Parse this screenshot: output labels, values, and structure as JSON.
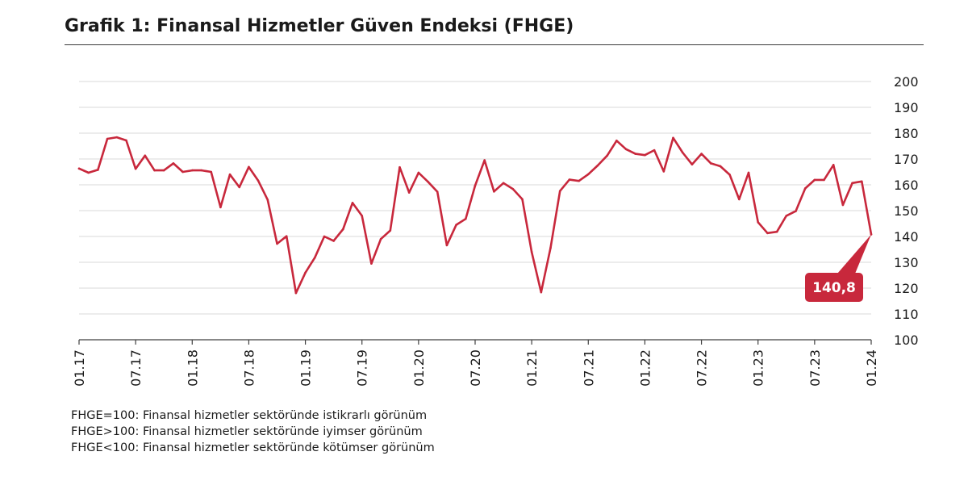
{
  "header": {
    "title": "Grafik 1: Finansal Hizmetler Güven Endeksi (FHGE)"
  },
  "notes": [
    "FHGE=100: Finansal hizmetler sektöründe istikrarlı görünüm",
    "FHGE>100: Finansal hizmetler sektöründe iyimser görünüm",
    "FHGE<100: Finansal hizmetler sektöründe kötümser görünüm"
  ],
  "colors": {
    "line": "#c8283c",
    "callout": "#c8283c",
    "grid": "#d9d9d9",
    "axis": "#404040"
  },
  "chart_data": {
    "type": "line",
    "title": "Grafik 1: Finansal Hizmetler Güven Endeksi (FHGE)",
    "xlabel": "",
    "ylabel": "",
    "ylim": [
      100,
      200
    ],
    "yticks": [
      100,
      110,
      120,
      130,
      140,
      150,
      160,
      170,
      180,
      190,
      200
    ],
    "xtick_labels": [
      "01.17",
      "07.17",
      "01.18",
      "07.18",
      "01.19",
      "07.19",
      "01.20",
      "07.20",
      "01.21",
      "07.21",
      "01.22",
      "07.22",
      "01.23",
      "07.23",
      "01.24"
    ],
    "x_start": "01.17",
    "x_end": "01.24",
    "frequency": "monthly",
    "grid": "horizontal",
    "legend": "none",
    "series": [
      {
        "values": [
          166.3,
          164.7,
          165.8,
          177.8,
          178.4,
          177.2,
          166.2,
          171.3,
          165.6,
          165.6,
          168.3,
          165.0,
          165.6,
          165.6,
          165.0,
          151.3,
          164.0,
          159.1,
          166.9,
          161.6,
          154.2,
          137.2,
          140.1,
          118.1,
          126.0,
          131.8,
          140.0,
          138.3,
          142.8,
          153.0,
          148.0,
          129.5,
          139.0,
          142.3,
          166.8,
          157.0,
          164.7,
          161.2,
          157.3,
          136.6,
          144.5,
          146.8,
          159.7,
          169.5,
          157.4,
          160.7,
          158.4,
          154.4,
          134.0,
          118.4,
          135.6,
          157.6,
          162.0,
          161.5,
          164.1,
          167.5,
          171.3,
          177.1,
          173.8,
          172.0,
          171.5,
          173.4,
          165.2,
          178.2,
          172.5,
          167.9,
          172.0,
          168.3,
          167.2,
          163.9,
          154.4,
          164.7,
          145.5,
          141.3,
          141.8,
          148.0,
          149.8,
          158.6,
          161.9,
          161.9,
          167.7,
          152.2,
          160.7,
          161.3,
          140.8
        ]
      }
    ],
    "annotation": {
      "text": "140,8",
      "x": "01.24",
      "value": 140.8
    }
  }
}
